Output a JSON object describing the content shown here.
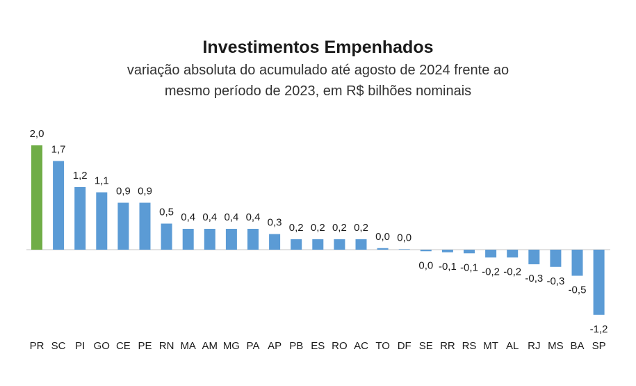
{
  "chart_data": {
    "type": "bar",
    "title": "Investimentos Empenhados",
    "subtitle_lines": [
      "variação absoluta do acumulado até agosto de 2024 frente ao",
      "mesmo período de 2023,  em R$ bilhões nominais"
    ],
    "categories": [
      "PR",
      "SC",
      "PI",
      "GO",
      "CE",
      "PE",
      "RN",
      "MA",
      "AM",
      "MG",
      "PA",
      "AP",
      "PB",
      "ES",
      "RO",
      "AC",
      "TO",
      "DF",
      "SE",
      "RR",
      "RS",
      "MT",
      "AL",
      "RJ",
      "MS",
      "BA",
      "SP"
    ],
    "values": [
      2.0,
      1.7,
      1.2,
      1.1,
      0.9,
      0.9,
      0.5,
      0.4,
      0.4,
      0.4,
      0.4,
      0.3,
      0.2,
      0.2,
      0.2,
      0.2,
      0.03,
      0.0,
      -0.03,
      -0.05,
      -0.07,
      -0.15,
      -0.15,
      -0.28,
      -0.33,
      -0.5,
      -1.25
    ],
    "value_labels": [
      "2,0",
      "1,7",
      "1,2",
      "1,1",
      "0,9",
      "0,9",
      "0,5",
      "0,4",
      "0,4",
      "0,4",
      "0,4",
      "0,3",
      "0,2",
      "0,2",
      "0,2",
      "0,2",
      "0,0",
      "0,0",
      "0,0",
      "-0,1",
      "-0,1",
      "-0,2",
      "-0,2",
      "-0,3",
      "-0,3",
      "-0,5",
      "-1,2"
    ],
    "colors": {
      "highlight": "#70ad47",
      "default": "#5b9bd5",
      "axis": "#d9d9d9"
    },
    "highlight_category": "PR",
    "ylim": [
      -1.35,
      2.0
    ],
    "grid": false,
    "legend": "none"
  }
}
